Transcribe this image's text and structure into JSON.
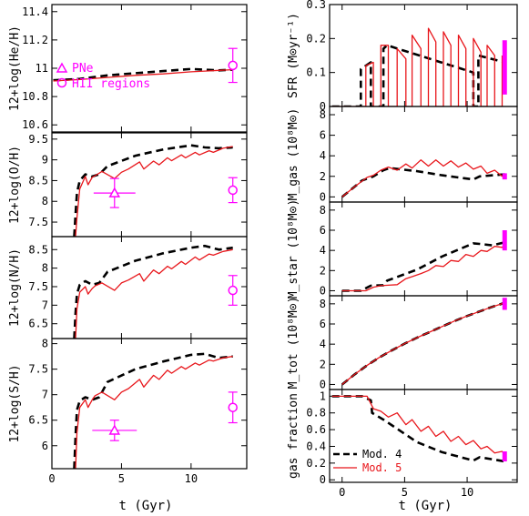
{
  "colors": {
    "mod4": "#000000",
    "mod5": "#e8161b",
    "obs": "#ff00ff"
  },
  "x_label": "t (Gyr)",
  "legend": {
    "obs": [
      {
        "name": "PNe",
        "marker": "triangle"
      },
      {
        "name": "HII regions",
        "marker": "circle"
      }
    ],
    "models": [
      {
        "name": "Mod. 4",
        "style": "dashed-black"
      },
      {
        "name": "Mod. 5",
        "style": "solid-red"
      }
    ]
  },
  "chart_data": [
    {
      "id": "he",
      "type": "line",
      "ylabel": "12+log(He/H)",
      "xlim": [
        0,
        14
      ],
      "ylim": [
        10.55,
        11.45
      ],
      "xticks": [
        0,
        5,
        10
      ],
      "yticks": [
        10.6,
        10.8,
        11,
        11.2,
        11.4
      ],
      "series": [
        {
          "name": "Mod. 4",
          "x": [
            0.1,
            2,
            4,
            6,
            8,
            10,
            11,
            12,
            13
          ],
          "y": [
            10.915,
            10.925,
            10.95,
            10.965,
            10.98,
            10.995,
            10.99,
            10.985,
            10.99
          ]
        },
        {
          "name": "Mod. 5",
          "x": [
            0.1,
            2,
            4,
            6,
            8,
            10,
            11,
            12,
            13
          ],
          "y": [
            10.91,
            10.92,
            10.935,
            10.95,
            10.96,
            10.975,
            10.98,
            10.985,
            10.99
          ]
        }
      ],
      "obs": [
        {
          "marker": "circle",
          "x": 13,
          "y": 11.02,
          "yerr": 0.12
        }
      ]
    },
    {
      "id": "o",
      "type": "line",
      "ylabel": "12+log(O/H)",
      "xlim": [
        0,
        14
      ],
      "ylim": [
        7.15,
        9.65
      ],
      "xticks": [
        0,
        5,
        10
      ],
      "yticks": [
        7.5,
        8,
        8.5,
        9,
        9.5
      ],
      "series": [
        {
          "name": "Mod. 4",
          "x": [
            1.6,
            1.7,
            1.8,
            2.0,
            2.4,
            2.9,
            3.4,
            4.0,
            6,
            8,
            10,
            11,
            12,
            13
          ],
          "y": [
            7.15,
            7.7,
            8.2,
            8.5,
            8.65,
            8.6,
            8.65,
            8.85,
            9.1,
            9.25,
            9.35,
            9.3,
            9.28,
            9.3
          ]
        },
        {
          "name": "Mod. 5",
          "x": [
            1.7,
            1.8,
            2.0,
            2.4,
            2.6,
            2.9,
            3.1,
            3.6,
            4.5,
            5.0,
            5.5,
            6.3,
            6.6,
            7.3,
            7.7,
            8.3,
            8.6,
            9.3,
            9.6,
            10.3,
            10.6,
            11.3,
            11.6,
            12.3,
            13.0
          ],
          "y": [
            7.15,
            7.6,
            8.3,
            8.6,
            8.4,
            8.58,
            8.62,
            8.72,
            8.55,
            8.7,
            8.78,
            8.95,
            8.78,
            8.97,
            8.88,
            9.05,
            8.98,
            9.12,
            9.05,
            9.18,
            9.12,
            9.22,
            9.18,
            9.28,
            9.32
          ]
        }
      ],
      "obs": [
        {
          "marker": "triangle",
          "x": 4.5,
          "y": 8.2,
          "yerr": 0.35,
          "xerr": 1.5
        },
        {
          "marker": "circle",
          "x": 13,
          "y": 8.27,
          "yerr": 0.3
        }
      ]
    },
    {
      "id": "n",
      "type": "line",
      "ylabel": "12+log(N/H)",
      "xlim": [
        0,
        14
      ],
      "ylim": [
        6.1,
        8.85
      ],
      "xticks": [
        0,
        5,
        10
      ],
      "yticks": [
        6.5,
        7,
        7.5,
        8,
        8.5
      ],
      "series": [
        {
          "name": "Mod. 4",
          "x": [
            1.6,
            1.7,
            1.8,
            2.0,
            2.4,
            2.9,
            3.4,
            4.0,
            6,
            8,
            10,
            11,
            12,
            13
          ],
          "y": [
            6.1,
            6.8,
            7.3,
            7.55,
            7.65,
            7.55,
            7.6,
            7.9,
            8.2,
            8.4,
            8.55,
            8.6,
            8.5,
            8.55
          ]
        },
        {
          "name": "Mod. 5",
          "x": [
            1.7,
            1.8,
            2.0,
            2.4,
            2.6,
            2.9,
            3.1,
            3.6,
            4.5,
            5.0,
            5.5,
            6.3,
            6.6,
            7.3,
            7.7,
            8.3,
            8.6,
            9.3,
            9.6,
            10.3,
            10.6,
            11.3,
            11.6,
            12.3,
            13.0
          ],
          "y": [
            6.1,
            6.9,
            7.35,
            7.5,
            7.3,
            7.45,
            7.52,
            7.6,
            7.4,
            7.6,
            7.68,
            7.85,
            7.65,
            7.95,
            7.85,
            8.05,
            7.98,
            8.18,
            8.1,
            8.3,
            8.22,
            8.38,
            8.35,
            8.45,
            8.5
          ]
        }
      ],
      "obs": [
        {
          "marker": "circle",
          "x": 13,
          "y": 7.4,
          "yerr": 0.4
        }
      ]
    },
    {
      "id": "s",
      "type": "line",
      "ylabel": "12+log(S/H)",
      "xlim": [
        0,
        14
      ],
      "ylim": [
        5.55,
        8.1
      ],
      "xticks": [
        0,
        5,
        10
      ],
      "yticks": [
        6,
        6.5,
        7,
        7.5,
        8
      ],
      "series": [
        {
          "name": "Mod. 4",
          "x": [
            1.6,
            1.7,
            1.8,
            2.0,
            2.4,
            2.9,
            3.4,
            4.0,
            6,
            8,
            10,
            11,
            12,
            13
          ],
          "y": [
            5.55,
            6.2,
            6.7,
            6.88,
            6.95,
            6.9,
            6.95,
            7.25,
            7.5,
            7.65,
            7.78,
            7.8,
            7.72,
            7.75
          ]
        },
        {
          "name": "Mod. 5",
          "x": [
            1.7,
            1.8,
            2.0,
            2.4,
            2.6,
            2.9,
            3.1,
            3.6,
            4.5,
            5.0,
            5.5,
            6.3,
            6.6,
            7.3,
            7.7,
            8.3,
            8.6,
            9.3,
            9.6,
            10.3,
            10.6,
            11.3,
            11.6,
            12.3,
            13.0
          ],
          "y": [
            5.55,
            6.25,
            6.75,
            6.9,
            6.75,
            6.9,
            6.98,
            7.05,
            6.9,
            7.05,
            7.12,
            7.3,
            7.15,
            7.38,
            7.3,
            7.48,
            7.42,
            7.55,
            7.5,
            7.62,
            7.58,
            7.68,
            7.66,
            7.72,
            7.75
          ]
        }
      ],
      "obs": [
        {
          "marker": "triangle",
          "x": 4.5,
          "y": 6.3,
          "yerr": 0.2,
          "xerr": 1.6
        },
        {
          "marker": "circle",
          "x": 13,
          "y": 6.75,
          "yerr": 0.3
        }
      ]
    },
    {
      "id": "sfr",
      "type": "line",
      "ylabel": "SFR (M⊙yr⁻¹)",
      "xlim": [
        -1,
        14
      ],
      "ylim": [
        0,
        0.3
      ],
      "xticks": [
        0,
        5,
        10
      ],
      "yticks": [
        0,
        0.1,
        0.2,
        0.3
      ],
      "series": [
        {
          "name": "Mod. 4",
          "x": [
            -0.8,
            1.5,
            1.5,
            2.3,
            2.3,
            3.3,
            3.3,
            3.6,
            10.5,
            10.5,
            10.9,
            10.9,
            13.0
          ],
          "y": [
            0,
            0,
            0.11,
            0.13,
            0,
            0,
            0.17,
            0.18,
            0.1,
            0,
            0,
            0.15,
            0.13
          ]
        },
        {
          "name": "Mod. 5",
          "x": [
            -0.8,
            1.9,
            1.9,
            2.5,
            2.5,
            3.1,
            3.1,
            3.7,
            3.7,
            4.4,
            4.4,
            5.1,
            5.1,
            5.6,
            5.6,
            6.3,
            6.3,
            6.9,
            6.9,
            7.5,
            7.5,
            8.1,
            8.1,
            8.7,
            8.7,
            9.3,
            9.3,
            9.9,
            9.9,
            10.5,
            10.5,
            11.1,
            11.1,
            11.6,
            11.6,
            12.2,
            12.2,
            12.8,
            12.8
          ],
          "y": [
            0,
            0,
            0.12,
            0.13,
            0,
            0,
            0.18,
            0.18,
            0,
            0,
            0.17,
            0.14,
            0,
            0,
            0.21,
            0.17,
            0,
            0,
            0.23,
            0.19,
            0,
            0,
            0.22,
            0.18,
            0,
            0,
            0.21,
            0.17,
            0,
            0,
            0.2,
            0.16,
            0,
            0,
            0.18,
            0.15,
            0,
            0,
            0.15
          ]
        }
      ],
      "obs": [
        {
          "marker": "bar",
          "x": 13,
          "y": 0.115,
          "yerr": 0.08
        }
      ]
    },
    {
      "id": "mgas",
      "type": "line",
      "ylabel": "M_gas (10⁸M⊙)",
      "xlim": [
        -1,
        14
      ],
      "ylim": [
        -0.5,
        8.8
      ],
      "xticks": [
        0,
        5,
        10
      ],
      "yticks": [
        0,
        2,
        4,
        6,
        8
      ],
      "series": [
        {
          "name": "Mod. 4",
          "x": [
            0,
            1,
            1.6,
            2.3,
            2.5,
            3.3,
            3.8,
            6,
            8,
            10.5,
            11,
            13
          ],
          "y": [
            0,
            1.0,
            1.6,
            1.9,
            2.0,
            2.6,
            2.8,
            2.5,
            2.1,
            1.7,
            2.0,
            2.2
          ]
        },
        {
          "name": "Mod. 5",
          "x": [
            0,
            1,
            2.0,
            2.5,
            3.1,
            3.7,
            4.4,
            5.1,
            5.6,
            6.3,
            6.9,
            7.5,
            8.1,
            8.7,
            9.3,
            9.9,
            10.5,
            11.1,
            11.6,
            12.2,
            12.8,
            13.0
          ],
          "y": [
            0,
            1.0,
            1.9,
            2.1,
            2.6,
            2.9,
            2.6,
            3.2,
            2.8,
            3.6,
            3.0,
            3.6,
            3.0,
            3.5,
            2.9,
            3.3,
            2.7,
            3.0,
            2.3,
            2.6,
            2.0,
            2.2
          ]
        }
      ],
      "obs": [
        {
          "marker": "bar",
          "x": 13,
          "y": 2.0,
          "yerr": 0.3
        }
      ]
    },
    {
      "id": "mstar",
      "type": "line",
      "ylabel": "M_star (10⁸M⊙)",
      "xlim": [
        -1,
        14
      ],
      "ylim": [
        -0.5,
        8.8
      ],
      "xticks": [
        0,
        5,
        10
      ],
      "yticks": [
        0,
        2,
        4,
        6,
        8
      ],
      "series": [
        {
          "name": "Mod. 4",
          "x": [
            0,
            1.5,
            2.3,
            3.3,
            3.6,
            6,
            8,
            10.5,
            11,
            12,
            13
          ],
          "y": [
            0,
            0,
            0.5,
            0.55,
            1.0,
            2.1,
            3.4,
            4.7,
            4.65,
            4.5,
            4.8
          ]
        },
        {
          "name": "Mod. 5",
          "x": [
            0,
            1.9,
            2.5,
            3.1,
            3.7,
            4.4,
            5.1,
            5.6,
            6.3,
            6.9,
            7.5,
            8.1,
            8.7,
            9.3,
            9.9,
            10.5,
            11.1,
            11.6,
            12.2,
            12.8,
            13.0
          ],
          "y": [
            0,
            0,
            0.35,
            0.5,
            0.55,
            0.6,
            1.2,
            1.4,
            1.7,
            2.0,
            2.5,
            2.4,
            3.0,
            2.9,
            3.6,
            3.4,
            4.0,
            3.9,
            4.4,
            4.3,
            4.6
          ]
        }
      ],
      "obs": [
        {
          "marker": "bar",
          "x": 13,
          "y": 5.0,
          "yerr": 1.0
        }
      ]
    },
    {
      "id": "mtot",
      "type": "line",
      "ylabel": "M_tot (10⁸M⊙)",
      "xlim": [
        -1,
        14
      ],
      "ylim": [
        -0.5,
        8.8
      ],
      "xticks": [
        0,
        5,
        10
      ],
      "yticks": [
        0,
        2,
        4,
        6,
        8
      ],
      "series": [
        {
          "name": "Mod. 4",
          "x": [
            0,
            1,
            2,
            3,
            4,
            5,
            6,
            7,
            8,
            9,
            10,
            11,
            12,
            13
          ],
          "y": [
            0,
            1.0,
            1.9,
            2.7,
            3.4,
            4.05,
            4.65,
            5.2,
            5.75,
            6.3,
            6.8,
            7.25,
            7.7,
            8.1
          ]
        },
        {
          "name": "Mod. 5",
          "x": [
            0,
            1,
            2,
            3,
            4,
            5,
            6,
            7,
            8,
            9,
            10,
            11,
            12,
            13
          ],
          "y": [
            0,
            1.0,
            1.9,
            2.7,
            3.4,
            4.05,
            4.65,
            5.2,
            5.75,
            6.3,
            6.8,
            7.25,
            7.7,
            8.1
          ]
        }
      ],
      "obs": [
        {
          "marker": "bar",
          "x": 13,
          "y": 8.0,
          "yerr": 0.6
        }
      ]
    },
    {
      "id": "frac",
      "type": "line",
      "ylabel": "gas fraction",
      "xlim": [
        -1,
        14
      ],
      "ylim": [
        -0.03,
        1.08
      ],
      "xticks": [
        0,
        5,
        10
      ],
      "yticks": [
        0,
        0.2,
        0.4,
        0.6,
        0.8,
        1
      ],
      "series": [
        {
          "name": "Mod. 4",
          "x": [
            -0.8,
            1.5,
            1.6,
            2.3,
            2.4,
            3.3,
            4,
            6,
            8,
            10.5,
            11,
            13
          ],
          "y": [
            1,
            1,
            1,
            0.95,
            0.8,
            0.72,
            0.65,
            0.45,
            0.33,
            0.23,
            0.27,
            0.22
          ]
        },
        {
          "name": "Mod. 5",
          "x": [
            -0.8,
            1.9,
            2.0,
            2.5,
            3.1,
            3.7,
            4.4,
            5.1,
            5.6,
            6.3,
            6.9,
            7.5,
            8.1,
            8.7,
            9.3,
            9.9,
            10.5,
            11.1,
            11.6,
            12.2,
            12.8,
            13.0
          ],
          "y": [
            1,
            1,
            1,
            0.85,
            0.82,
            0.75,
            0.8,
            0.66,
            0.72,
            0.58,
            0.64,
            0.52,
            0.58,
            0.46,
            0.52,
            0.42,
            0.47,
            0.37,
            0.4,
            0.32,
            0.34,
            0.3
          ]
        }
      ],
      "obs": [
        {
          "marker": "bar",
          "x": 13,
          "y": 0.28,
          "yerr": 0.06
        }
      ]
    }
  ]
}
